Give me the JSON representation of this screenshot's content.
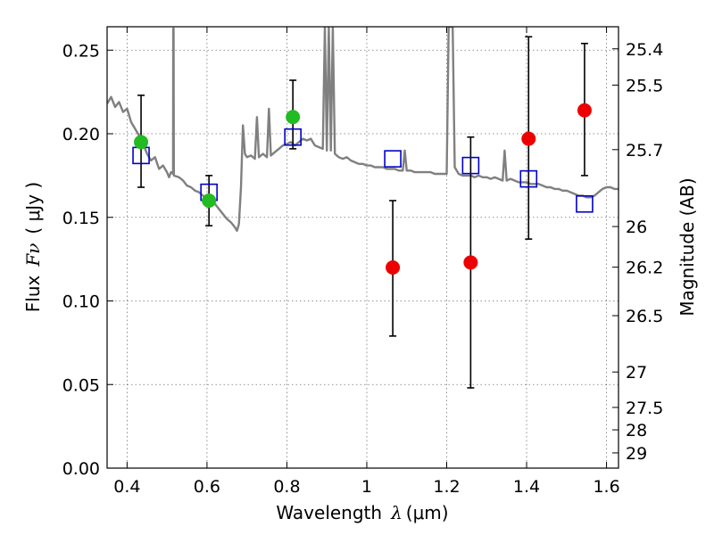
{
  "chart_data": {
    "type": "scatter",
    "xlabel_prefix": "Wavelength",
    "xlabel_symbol": "λ",
    "xlabel_unit": "(μm)",
    "ylabel_prefix": "Flux",
    "ylabel_symbol": "Fν",
    "ylabel_unit": "( μJy )",
    "y2label": "Magnitude (AB)",
    "xlim": [
      0.35,
      1.63
    ],
    "ylim": [
      0.0,
      0.264
    ],
    "x_ticks": [
      0.4,
      0.6,
      0.8,
      1.0,
      1.2,
      1.4,
      1.6
    ],
    "x_tick_labels": [
      "0.4",
      "0.6",
      "0.8",
      "1",
      "1.2",
      "1.4",
      "1.6"
    ],
    "y_ticks": [
      0.0,
      0.05,
      0.1,
      0.15,
      0.2,
      0.25
    ],
    "y_tick_labels": [
      "0.00",
      "0.05",
      "0.10",
      "0.15",
      "0.20",
      "0.25"
    ],
    "mag_ticks": [
      {
        "label": "25.4",
        "value": 0.2508
      },
      {
        "label": "25.5",
        "value": 0.2291
      },
      {
        "label": "25.7",
        "value": 0.1905
      },
      {
        "label": "26",
        "value": 0.1445
      },
      {
        "label": "26.2",
        "value": 0.1202
      },
      {
        "label": "26.5",
        "value": 0.0912
      },
      {
        "label": "27",
        "value": 0.0575
      },
      {
        "label": "27.5",
        "value": 0.0363
      },
      {
        "label": "28",
        "value": 0.0229
      },
      {
        "label": "29",
        "value": 0.0091
      }
    ],
    "grid": true,
    "series": [
      {
        "kind": "model-spectrum",
        "color": "#808080",
        "points": [
          [
            0.35,
            0.218
          ],
          [
            0.36,
            0.222
          ],
          [
            0.37,
            0.216
          ],
          [
            0.38,
            0.219
          ],
          [
            0.39,
            0.213
          ],
          [
            0.4,
            0.215
          ],
          [
            0.41,
            0.207
          ],
          [
            0.42,
            0.203
          ],
          [
            0.43,
            0.199
          ],
          [
            0.44,
            0.194
          ],
          [
            0.45,
            0.188
          ],
          [
            0.46,
            0.184
          ],
          [
            0.47,
            0.186
          ],
          [
            0.48,
            0.179
          ],
          [
            0.49,
            0.181
          ],
          [
            0.5,
            0.177
          ],
          [
            0.505,
            0.174
          ],
          [
            0.51,
            0.177
          ],
          [
            0.515,
            0.176
          ],
          [
            0.5155,
            0.263
          ],
          [
            0.5165,
            0.263
          ],
          [
            0.517,
            0.175
          ],
          [
            0.53,
            0.174
          ],
          [
            0.54,
            0.172
          ],
          [
            0.55,
            0.169
          ],
          [
            0.56,
            0.168
          ],
          [
            0.57,
            0.166
          ],
          [
            0.58,
            0.165
          ],
          [
            0.59,
            0.163
          ],
          [
            0.6,
            0.161
          ],
          [
            0.61,
            0.161
          ],
          [
            0.62,
            0.158
          ],
          [
            0.63,
            0.155
          ],
          [
            0.64,
            0.152
          ],
          [
            0.65,
            0.149
          ],
          [
            0.66,
            0.147
          ],
          [
            0.67,
            0.144
          ],
          [
            0.675,
            0.142
          ],
          [
            0.68,
            0.146
          ],
          [
            0.685,
            0.168
          ],
          [
            0.69,
            0.205
          ],
          [
            0.695,
            0.188
          ],
          [
            0.7,
            0.186
          ],
          [
            0.71,
            0.187
          ],
          [
            0.72,
            0.185
          ],
          [
            0.725,
            0.21
          ],
          [
            0.73,
            0.186
          ],
          [
            0.74,
            0.188
          ],
          [
            0.75,
            0.186
          ],
          [
            0.755,
            0.215
          ],
          [
            0.76,
            0.187
          ],
          [
            0.77,
            0.189
          ],
          [
            0.78,
            0.191
          ],
          [
            0.79,
            0.193
          ],
          [
            0.8,
            0.194
          ],
          [
            0.81,
            0.195
          ],
          [
            0.82,
            0.193
          ],
          [
            0.83,
            0.195
          ],
          [
            0.84,
            0.197
          ],
          [
            0.85,
            0.196
          ],
          [
            0.86,
            0.197
          ],
          [
            0.87,
            0.193
          ],
          [
            0.88,
            0.192
          ],
          [
            0.89,
            0.191
          ],
          [
            0.895,
            0.264
          ],
          [
            0.9,
            0.19
          ],
          [
            0.905,
            0.264
          ],
          [
            0.91,
            0.19
          ],
          [
            0.915,
            0.264
          ],
          [
            0.92,
            0.188
          ],
          [
            0.93,
            0.186
          ],
          [
            0.94,
            0.185
          ],
          [
            0.95,
            0.186
          ],
          [
            0.96,
            0.184
          ],
          [
            0.97,
            0.183
          ],
          [
            0.98,
            0.182
          ],
          [
            0.99,
            0.182
          ],
          [
            1.0,
            0.181
          ],
          [
            1.01,
            0.181
          ],
          [
            1.02,
            0.18
          ],
          [
            1.03,
            0.18
          ],
          [
            1.04,
            0.18
          ],
          [
            1.05,
            0.179
          ],
          [
            1.06,
            0.179
          ],
          [
            1.07,
            0.179
          ],
          [
            1.08,
            0.178
          ],
          [
            1.09,
            0.178
          ],
          [
            1.095,
            0.19
          ],
          [
            1.1,
            0.178
          ],
          [
            1.11,
            0.178
          ],
          [
            1.12,
            0.177
          ],
          [
            1.13,
            0.177
          ],
          [
            1.14,
            0.177
          ],
          [
            1.15,
            0.177
          ],
          [
            1.16,
            0.177
          ],
          [
            1.17,
            0.176
          ],
          [
            1.18,
            0.176
          ],
          [
            1.19,
            0.176
          ],
          [
            1.2,
            0.176
          ],
          [
            1.205,
            0.264
          ],
          [
            1.215,
            0.264
          ],
          [
            1.22,
            0.18
          ],
          [
            1.23,
            0.176
          ],
          [
            1.24,
            0.175
          ],
          [
            1.25,
            0.175
          ],
          [
            1.26,
            0.175
          ],
          [
            1.27,
            0.174
          ],
          [
            1.28,
            0.175
          ],
          [
            1.29,
            0.174
          ],
          [
            1.3,
            0.174
          ],
          [
            1.31,
            0.173
          ],
          [
            1.32,
            0.174
          ],
          [
            1.33,
            0.173
          ],
          [
            1.34,
            0.172
          ],
          [
            1.345,
            0.19
          ],
          [
            1.35,
            0.172
          ],
          [
            1.36,
            0.173
          ],
          [
            1.37,
            0.172
          ],
          [
            1.38,
            0.171
          ],
          [
            1.39,
            0.171
          ],
          [
            1.4,
            0.171
          ],
          [
            1.41,
            0.17
          ],
          [
            1.42,
            0.17
          ],
          [
            1.43,
            0.17
          ],
          [
            1.44,
            0.169
          ],
          [
            1.45,
            0.168
          ],
          [
            1.46,
            0.168
          ],
          [
            1.47,
            0.167
          ],
          [
            1.48,
            0.167
          ],
          [
            1.49,
            0.166
          ],
          [
            1.5,
            0.166
          ],
          [
            1.51,
            0.165
          ],
          [
            1.52,
            0.164
          ],
          [
            1.53,
            0.163
          ],
          [
            1.54,
            0.163
          ],
          [
            1.55,
            0.162
          ],
          [
            1.56,
            0.162
          ],
          [
            1.57,
            0.163
          ],
          [
            1.58,
            0.165
          ],
          [
            1.59,
            0.167
          ],
          [
            1.6,
            0.168
          ],
          [
            1.61,
            0.168
          ],
          [
            1.62,
            0.167
          ],
          [
            1.63,
            0.167
          ]
        ]
      },
      {
        "kind": "model-photometry",
        "marker": "open-square",
        "color": "#0000cc",
        "x": [
          0.435,
          0.605,
          0.815,
          1.065,
          1.26,
          1.405,
          1.545
        ],
        "y": [
          0.187,
          0.165,
          0.198,
          0.185,
          0.181,
          0.173,
          0.158
        ]
      },
      {
        "kind": "observed-photometry",
        "marker": "filled-circle",
        "color": "#22bb22",
        "x": [
          0.435,
          0.605,
          0.815
        ],
        "y": [
          0.195,
          0.16,
          0.21
        ],
        "yerr_low": [
          0.168,
          0.145,
          0.191
        ],
        "yerr_high": [
          0.223,
          0.175,
          0.232
        ]
      },
      {
        "kind": "observed-photometry",
        "marker": "filled-circle",
        "color": "#ee0000",
        "x": [
          1.065,
          1.26,
          1.405,
          1.545
        ],
        "y": [
          0.12,
          0.123,
          0.197,
          0.214
        ],
        "yerr_low": [
          0.079,
          0.048,
          0.137,
          0.175
        ],
        "yerr_high": [
          0.16,
          0.198,
          0.258,
          0.254
        ]
      }
    ]
  }
}
